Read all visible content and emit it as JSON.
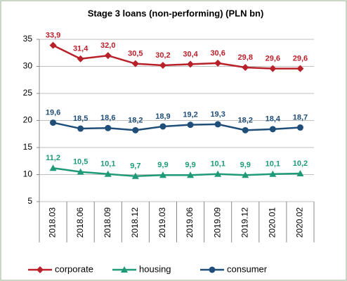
{
  "chart_data": {
    "type": "line",
    "title": "Stage 3 loans (non-performing) (PLN bn)",
    "categories": [
      "2018.03",
      "2018.06",
      "2018.09",
      "2018.12",
      "2019.03",
      "2019.06",
      "2019.09",
      "2019.12",
      "2020.01",
      "2020.02"
    ],
    "series": [
      {
        "name": "corporate",
        "color": "#b8202a",
        "marker": "diamond",
        "values": [
          33.9,
          31.4,
          32.0,
          30.5,
          30.2,
          30.4,
          30.6,
          29.8,
          29.6,
          29.6
        ],
        "value_labels": [
          "33,9",
          "31,4",
          "32,0",
          "30,5",
          "30,2",
          "30,4",
          "30,6",
          "29,8",
          "29,6",
          "29,6"
        ]
      },
      {
        "name": "housing",
        "color": "#1e9a78",
        "marker": "triangle",
        "values": [
          11.2,
          10.5,
          10.1,
          9.7,
          9.9,
          9.9,
          10.1,
          9.9,
          10.1,
          10.2
        ],
        "value_labels": [
          "11,2",
          "10,5",
          "10,1",
          "9,7",
          "9,9",
          "9,9",
          "10,1",
          "9,9",
          "10,1",
          "10,2"
        ]
      },
      {
        "name": "consumer",
        "color": "#1f4e79",
        "marker": "circle",
        "values": [
          19.6,
          18.5,
          18.6,
          18.2,
          18.9,
          19.2,
          19.3,
          18.2,
          18.4,
          18.7
        ],
        "value_labels": [
          "19,6",
          "18,5",
          "18,6",
          "18,2",
          "18,9",
          "19,2",
          "19,3",
          "18,2",
          "18,4",
          "18,7"
        ]
      }
    ],
    "ylim": [
      5,
      35
    ],
    "yticks": [
      5,
      10,
      15,
      20,
      25,
      30,
      35
    ],
    "grid": true,
    "legend": "bottom"
  }
}
